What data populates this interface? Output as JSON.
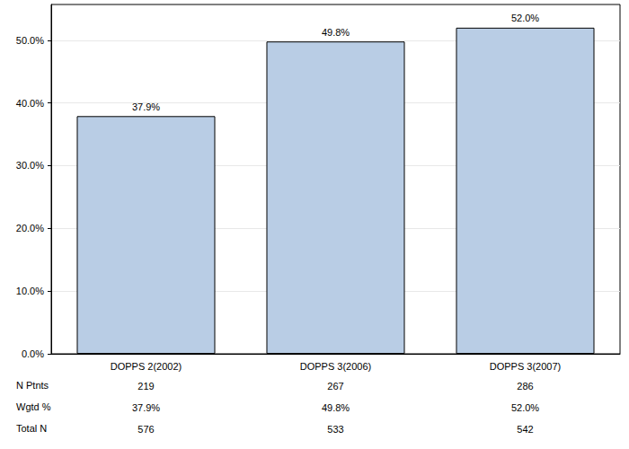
{
  "chart_data": {
    "type": "bar",
    "categories": [
      "DOPPS 2(2002)",
      "DOPPS 3(2006)",
      "DOPPS 3(2007)"
    ],
    "values": [
      37.9,
      49.8,
      52.0
    ],
    "value_labels": [
      "37.9%",
      "49.8%",
      "52.0%"
    ],
    "data_labels": true,
    "color": "#b9cde5",
    "ylim": [
      0,
      55.7
    ],
    "yticks": [
      {
        "value": 0,
        "label": "0.0%"
      },
      {
        "value": 10,
        "label": "10.0%"
      },
      {
        "value": 20,
        "label": "20.0%"
      },
      {
        "value": 30,
        "label": "30.0%"
      },
      {
        "value": 40,
        "label": "40.0%"
      },
      {
        "value": 50,
        "label": "50.0%"
      }
    ],
    "grid": true,
    "table_rows": [
      {
        "label": "N Ptnts",
        "values": [
          "219",
          "267",
          "286"
        ]
      },
      {
        "label": "Wgtd %",
        "values": [
          "37.9%",
          "49.8%",
          "52.0%"
        ]
      },
      {
        "label": "Total N",
        "values": [
          "576",
          "533",
          "542"
        ]
      }
    ]
  }
}
